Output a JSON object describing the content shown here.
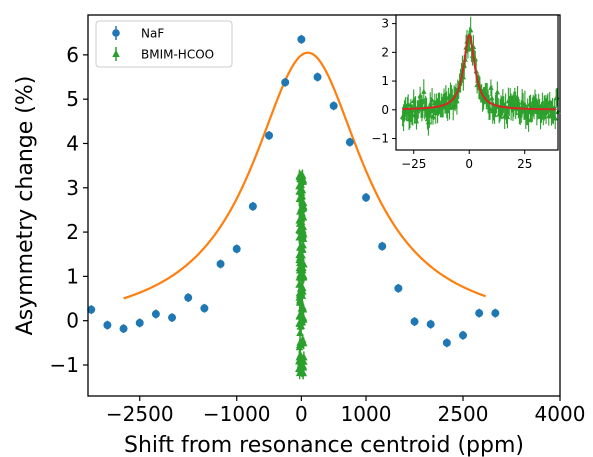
{
  "chart_data": [
    {
      "type": "scatter",
      "xlabel": "Shift from resonance centroid (ppm)",
      "ylabel": "Asymmetry change (%)",
      "xlim": [
        -3300,
        4000
      ],
      "ylim": [
        -1.7,
        6.9
      ],
      "xticks": [
        -2500,
        -1000,
        0,
        1000,
        2500,
        4000
      ],
      "xtick_labels": [
        "−2500",
        "−1000",
        "0",
        "1000",
        "2500",
        "4000"
      ],
      "yticks": [
        -1,
        0,
        1,
        2,
        3,
        4,
        5,
        6
      ],
      "ytick_labels": [
        "−1",
        "0",
        "1",
        "2",
        "3",
        "4",
        "5",
        "6"
      ],
      "legend_position": "top-left",
      "colors": {
        "naf": "#1f77b4",
        "bmim": "#2ca02c",
        "fit": "#ff7f0e"
      },
      "series": [
        {
          "name": "NaF",
          "marker": "circle",
          "x": [
            -3250,
            -3000,
            -2750,
            -2500,
            -2250,
            -2000,
            -1750,
            -1500,
            -1250,
            -1000,
            -750,
            -500,
            -250,
            0,
            250,
            500,
            750,
            1000,
            1250,
            1500,
            1750,
            2000,
            2250,
            2500,
            2750,
            3000
          ],
          "y": [
            0.25,
            -0.1,
            -0.18,
            -0.05,
            0.15,
            0.07,
            0.52,
            0.28,
            1.28,
            1.62,
            2.58,
            4.18,
            5.38,
            6.35,
            5.5,
            4.85,
            4.03,
            2.78,
            1.68,
            0.73,
            -0.02,
            -0.08,
            -0.5,
            -0.33,
            0.17,
            0.17
          ],
          "yerr": [
            0.1,
            0.1,
            0.1,
            0.1,
            0.1,
            0.1,
            0.1,
            0.1,
            0.1,
            0.1,
            0.1,
            0.1,
            0.1,
            0.1,
            0.1,
            0.1,
            0.1,
            0.1,
            0.1,
            0.1,
            0.1,
            0.1,
            0.1,
            0.1,
            0.1,
            0.1
          ]
        },
        {
          "name": "BMIM-HCOO",
          "marker": "triangle",
          "x_range": [
            -40,
            40
          ],
          "y_min": -1.2,
          "y_max": 3.3,
          "note_points": "dense narrow peak near 0 ppm"
        },
        {
          "name": "",
          "type": "line",
          "fit": "lorentzian",
          "x_range": [
            -2750,
            2850
          ],
          "baseline": -0.25,
          "amplitude": 6.3,
          "center": 100,
          "hwhm": 1050
        }
      ]
    },
    {
      "type": "scatter",
      "role": "inset",
      "xlim": [
        -33,
        40
      ],
      "ylim": [
        -1.4,
        3.3
      ],
      "xticks": [
        -25,
        0,
        25
      ],
      "xtick_labels": [
        "−25",
        "0",
        "25"
      ],
      "yticks": [
        -1,
        0,
        1,
        2,
        3
      ],
      "ytick_labels": [
        "−1",
        "0",
        "1",
        "2",
        "3"
      ],
      "colors": {
        "points": "#2ca02c",
        "fit": "#d62728"
      },
      "series": [
        {
          "name": "",
          "marker": "triangle",
          "x_range": [
            -30,
            40
          ],
          "note_points": "noisy data around 0 with peak near 2.6 at x=0"
        },
        {
          "name": "",
          "type": "line",
          "fit": "lorentzian",
          "baseline": 0.0,
          "amplitude": 2.6,
          "center": 0,
          "hwhm": 3
        }
      ]
    }
  ]
}
